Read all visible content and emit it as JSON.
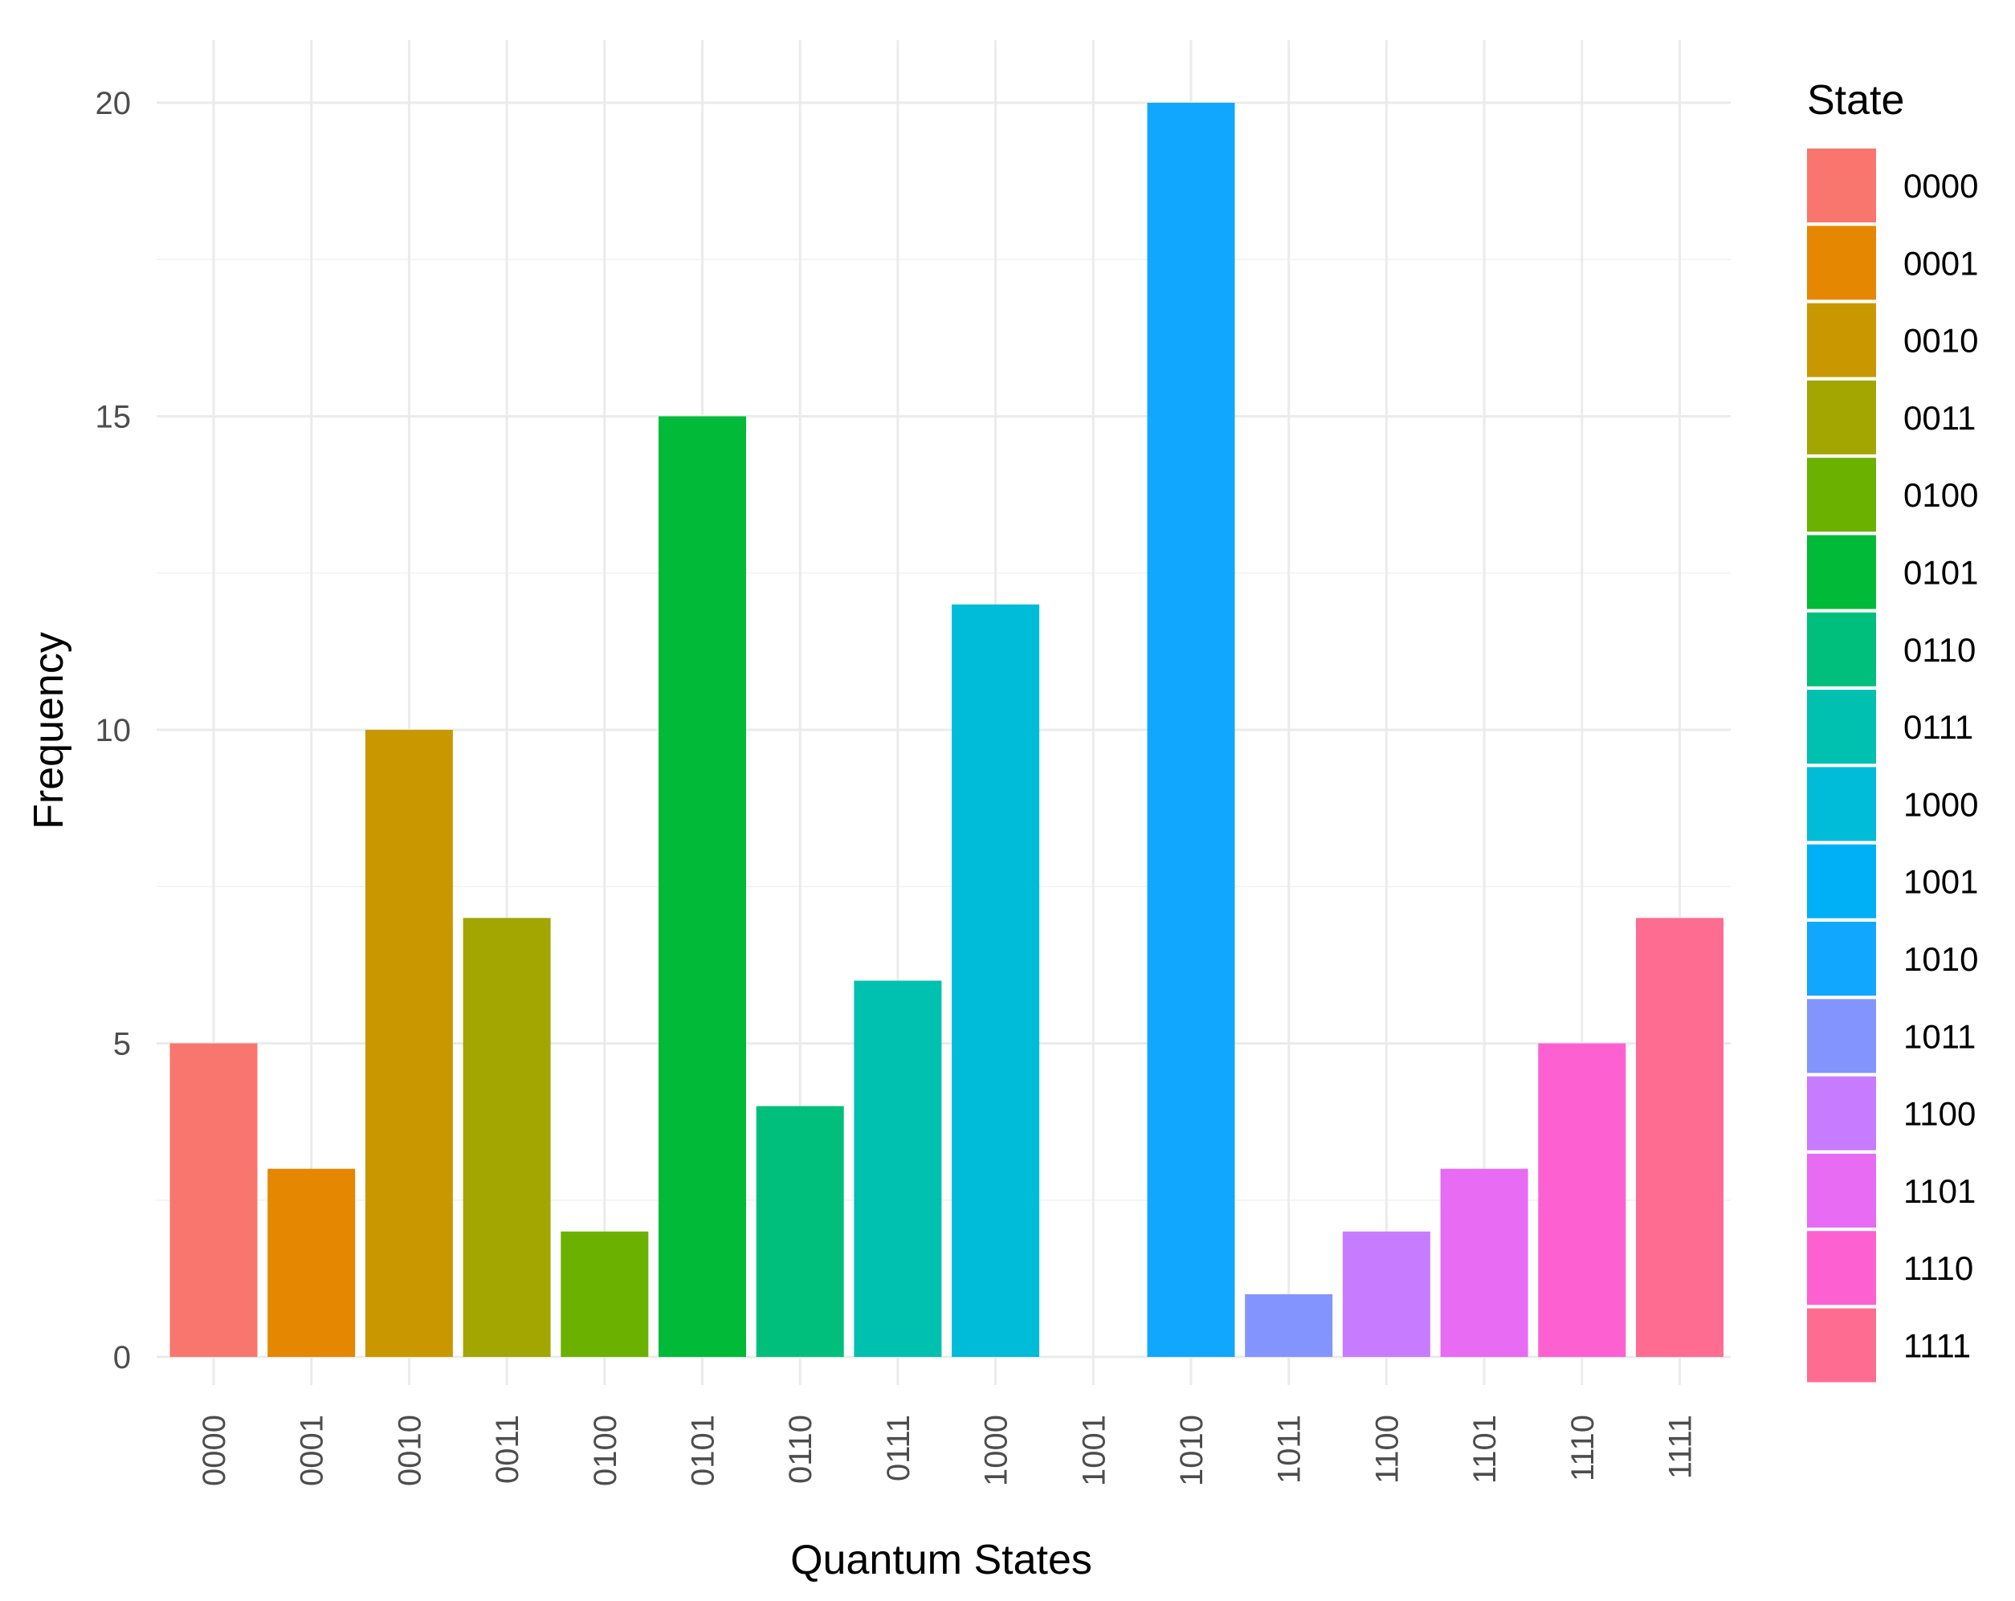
{
  "chart_data": {
    "type": "bar",
    "title": "",
    "xlabel": "Quantum States",
    "ylabel": "Frequency",
    "categories": [
      "0000",
      "0001",
      "0010",
      "0011",
      "0100",
      "0101",
      "0110",
      "0111",
      "1000",
      "1001",
      "1010",
      "1011",
      "1100",
      "1101",
      "1110",
      "1111"
    ],
    "values": [
      5,
      3,
      10,
      7,
      2,
      15,
      4,
      6,
      12,
      0,
      20,
      1,
      2,
      3,
      5,
      7
    ],
    "colors": [
      "#F8766D",
      "#E58700",
      "#C99800",
      "#A3A500",
      "#6BB100",
      "#00BA38",
      "#00BF7D",
      "#00C0AF",
      "#00BCD8",
      "#00B0F6",
      "#11A7FF",
      "#8494FF",
      "#C77CFF",
      "#E76BF3",
      "#FD61D1",
      "#FF6C91"
    ],
    "ylim": [
      0,
      20
    ],
    "yticks": [
      0,
      5,
      10,
      15,
      20
    ],
    "grid": true,
    "legend": {
      "title": "State",
      "position": "right",
      "entries": [
        "0000",
        "0001",
        "0010",
        "0011",
        "0100",
        "0101",
        "0110",
        "0111",
        "1000",
        "1001",
        "1010",
        "1011",
        "1100",
        "1101",
        "1110",
        "1111"
      ]
    }
  }
}
